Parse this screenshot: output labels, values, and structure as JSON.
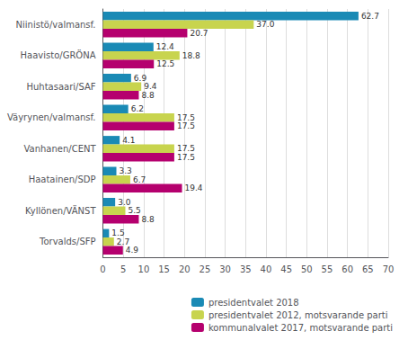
{
  "chart_data": {
    "type": "bar",
    "orientation": "horizontal",
    "categories": [
      "Niinistö/valmansf.",
      "Haavisto/GRÖNA",
      "Huhtasaari/SAF",
      "Väyrynen/valmansf.",
      "Vanhanen/CENT",
      "Haatainen/SDP",
      "Kyllönen/VÄNST",
      "Torvalds/SFP"
    ],
    "series": [
      {
        "name": "presidentvalet 2018",
        "color": "#1a8ab5",
        "values": [
          62.7,
          12.4,
          6.9,
          6.2,
          4.1,
          3.3,
          3.0,
          1.5
        ],
        "value_labels": [
          "62.7",
          "12.4",
          "6.9",
          "6.2",
          "4.1",
          "3.3",
          "3.0",
          "1.5"
        ]
      },
      {
        "name": "presidentvalet 2012, motsvarande parti",
        "color": "#c8d44e",
        "values": [
          37.0,
          18.8,
          9.4,
          17.5,
          17.5,
          6.7,
          5.5,
          2.7
        ],
        "value_labels": [
          "37.0",
          "18.8",
          "9.4",
          "17.5",
          "17.5",
          "6.7",
          "5.5",
          "2.7"
        ]
      },
      {
        "name": "kommunalvalet 2017, motsvarande parti",
        "color": "#b5006e",
        "values": [
          20.7,
          12.5,
          8.8,
          17.5,
          17.5,
          19.4,
          8.8,
          4.9
        ],
        "value_labels": [
          "20.7",
          "12.5",
          "8.8",
          "17.5",
          "17.5",
          "19.4",
          "8.8",
          "4.9"
        ]
      }
    ],
    "xlim": [
      0,
      70
    ],
    "xticks": [
      0,
      5,
      10,
      15,
      20,
      25,
      30,
      35,
      40,
      45,
      50,
      55,
      60,
      65,
      70
    ],
    "grid": true,
    "legend": "lower right",
    "data_labels": true
  }
}
